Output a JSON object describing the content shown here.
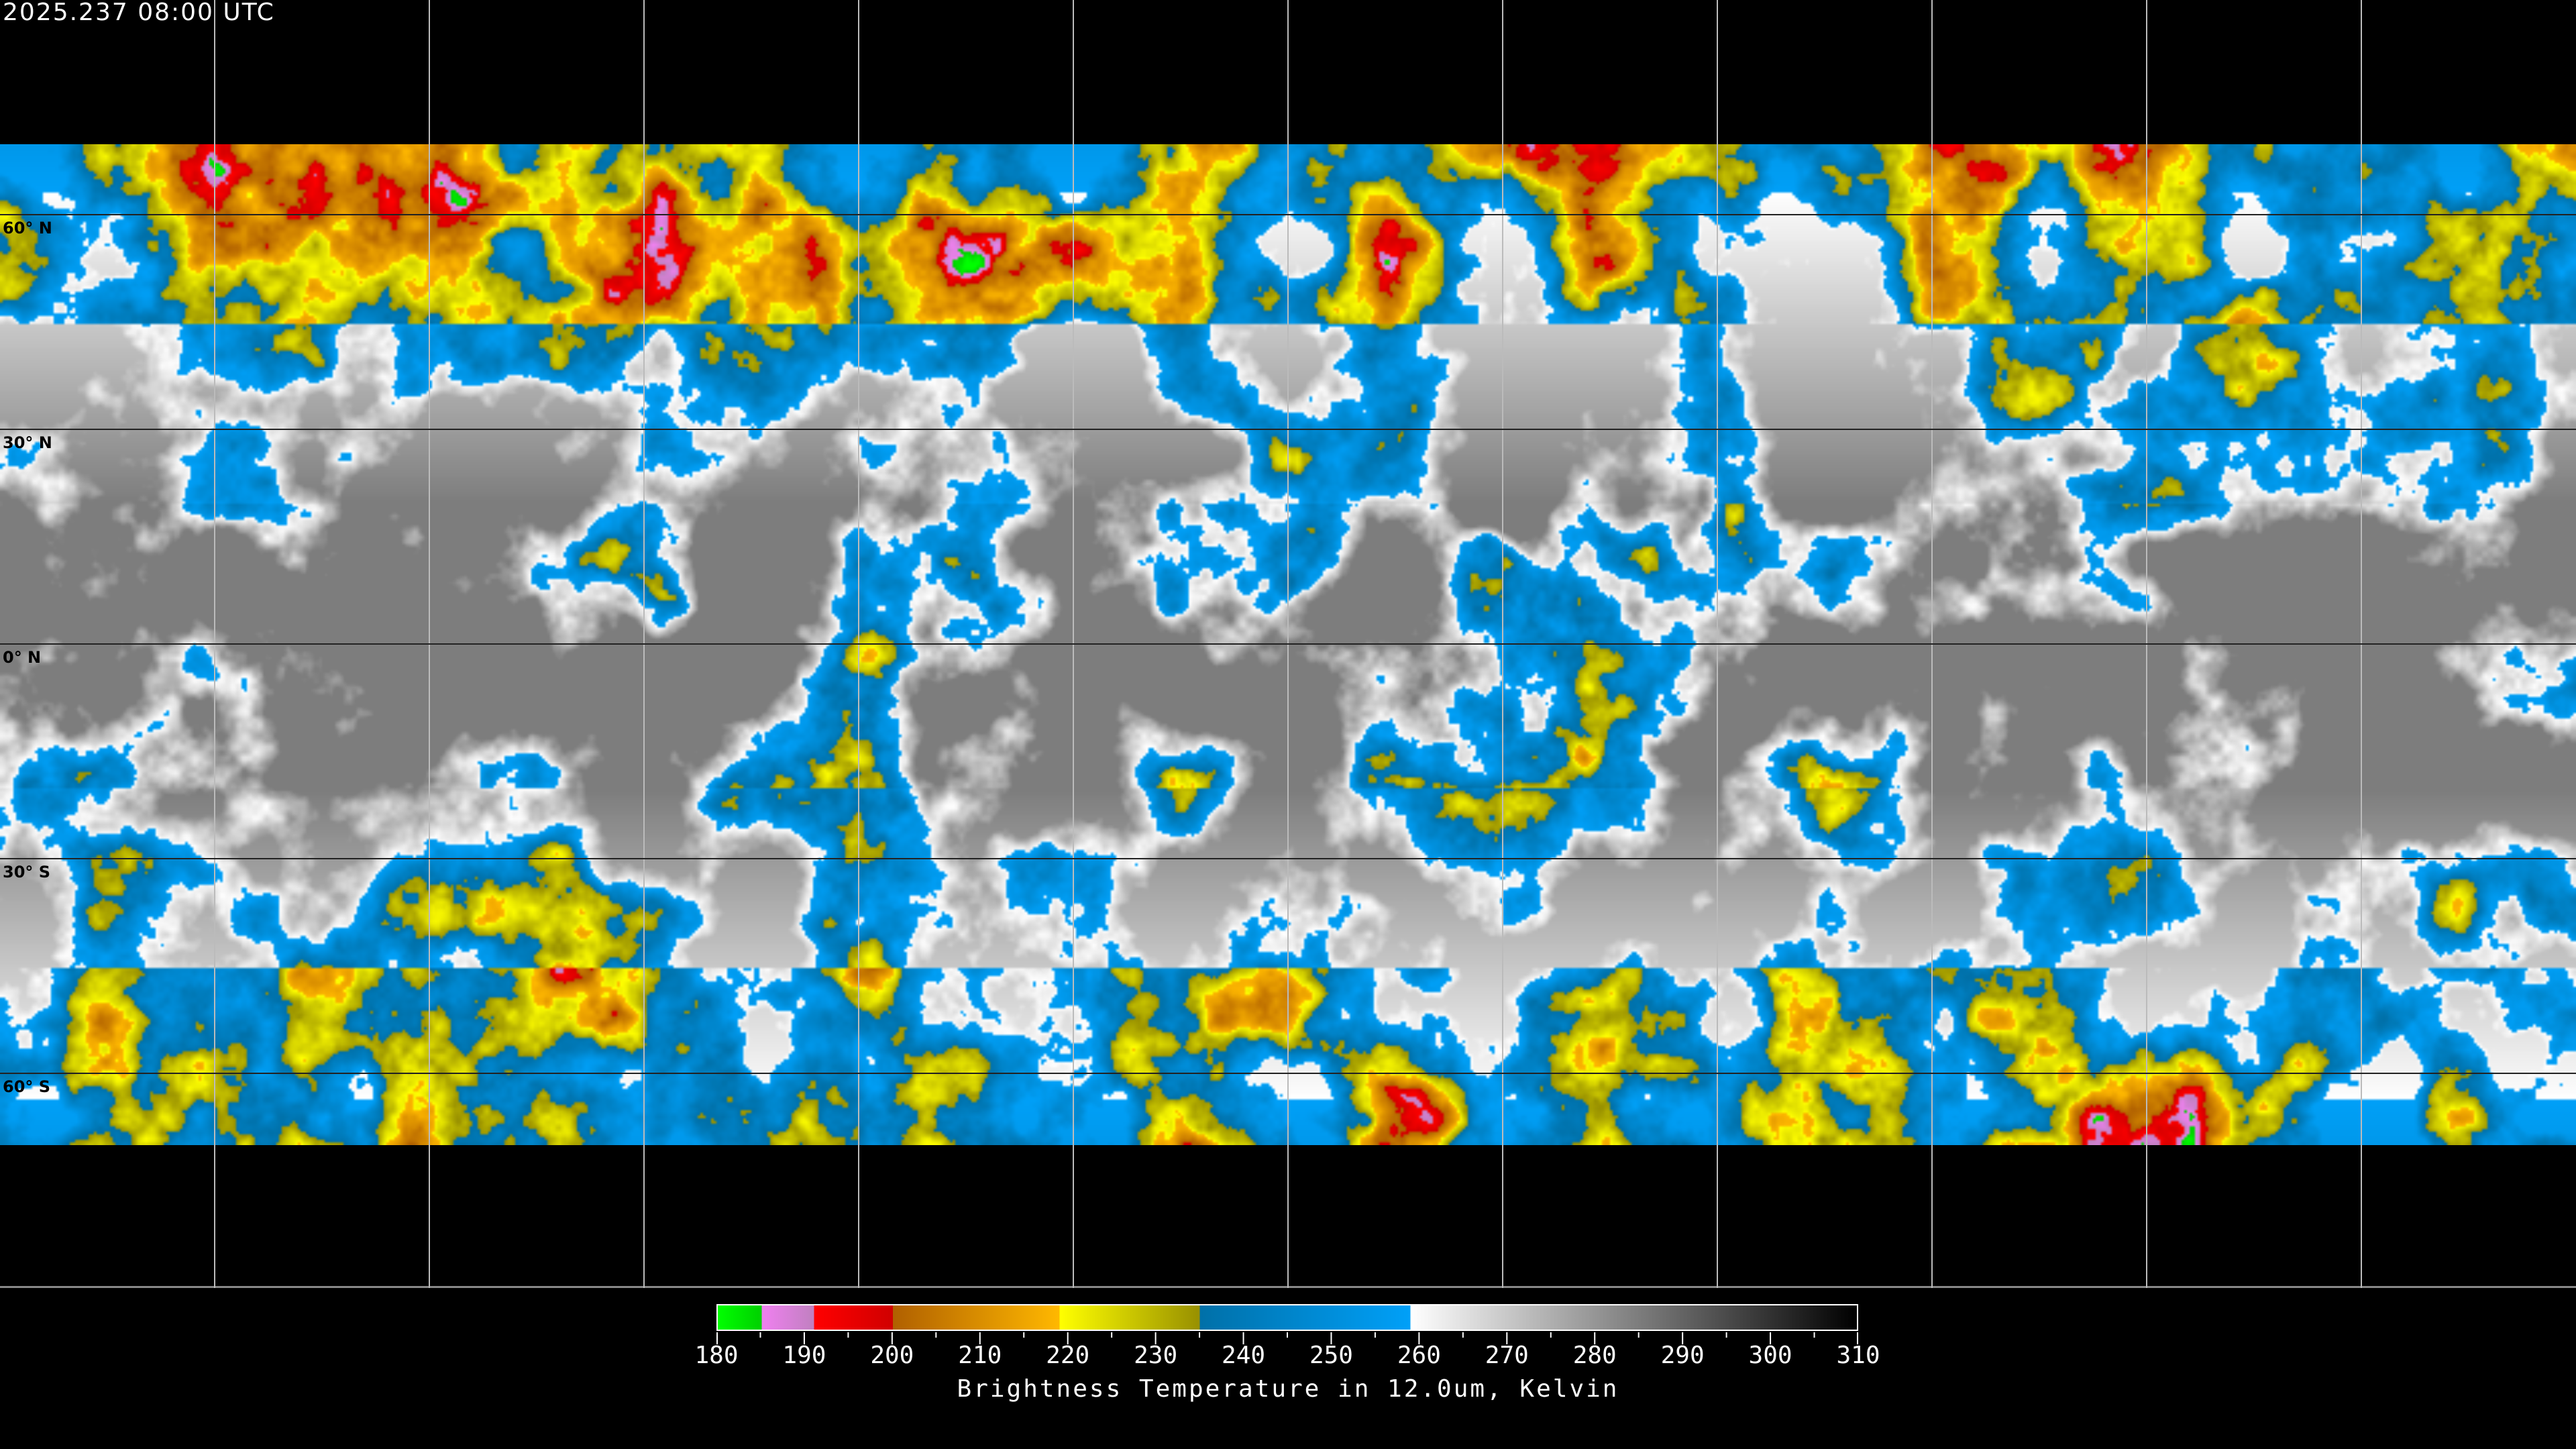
{
  "header": {
    "timestamp": "2025.237 08:00 UTC"
  },
  "map": {
    "projection": "equirectangular",
    "grid_spacing_degrees": 30,
    "latitude_labels": [
      "60° N",
      "30° N",
      "0° N",
      "30° S",
      "60° S"
    ]
  },
  "colorbar": {
    "title": "Brightness Temperature in 12.0um, Kelvin",
    "tick_labels": [
      "180",
      "190",
      "200",
      "210",
      "220",
      "230",
      "240",
      "250",
      "260",
      "270",
      "280",
      "290",
      "300",
      "310"
    ],
    "range": [
      180,
      310
    ],
    "segments": [
      {
        "from": 180,
        "to": 185,
        "colors": [
          "#00ff00",
          "#00d000"
        ]
      },
      {
        "from": 185,
        "to": 191,
        "colors": [
          "#f080f0",
          "#c080c0"
        ]
      },
      {
        "from": 191,
        "to": 200,
        "colors": [
          "#ff0000",
          "#d00000"
        ]
      },
      {
        "from": 200,
        "to": 219,
        "colors": [
          "#b06000",
          "#ffb800"
        ]
      },
      {
        "from": 219,
        "to": 235,
        "colors": [
          "#ffff00",
          "#989000"
        ]
      },
      {
        "from": 235,
        "to": 259,
        "colors": [
          "#0070a8",
          "#00a0f8"
        ]
      },
      {
        "from": 259,
        "to": 310,
        "colors": [
          "#ffffff",
          "#000000"
        ]
      }
    ]
  }
}
